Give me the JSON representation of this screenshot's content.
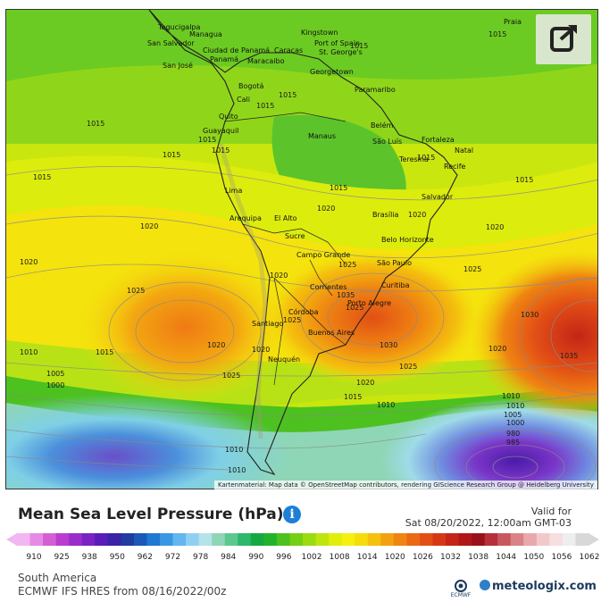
{
  "header": {
    "title": "Mean Sea Level Pressure (hPa)",
    "valid_label": "Valid for",
    "valid_time": "Sat 08/20/2022, 12:00am GMT-03"
  },
  "map": {
    "attribution": "Kartenmaterial: Map data © OpenStreetMap contributors, rendering GIScience Research Group @ Heidelberg University",
    "cities": [
      "Tegucigalpa",
      "San Salvador",
      "Managua",
      "Ciudad de Panamá",
      "San José",
      "Panamá",
      "Maracaibo",
      "Caracas",
      "Port of Spain",
      "St. George's",
      "Kingstown",
      "Georgetown",
      "Paramaribo",
      "Bogotá",
      "Cali",
      "Quito",
      "Guayaquil",
      "Lima",
      "Arequipa",
      "El Alto",
      "Sucre",
      "Belém",
      "Manaus",
      "São Luís",
      "Fortaleza",
      "Teresina",
      "Natal",
      "Recife",
      "Salvador",
      "Brasília",
      "Belo Horizonte",
      "São Paulo",
      "Curitiba",
      "Campo Grande",
      "Porto Alegre",
      "Corrientes",
      "Córdoba",
      "Santiago",
      "Buenos Aires",
      "Neuquén",
      "Praia"
    ],
    "isobars": [
      "1015",
      "1015",
      "1015",
      "1015",
      "1015",
      "1015",
      "1015",
      "1015",
      "1015",
      "1015",
      "1015",
      "1015",
      "1015",
      "1015",
      "1020",
      "1020",
      "1020",
      "1020",
      "1020",
      "1020",
      "1020",
      "1020",
      "1020",
      "1020",
      "1025",
      "1025",
      "1025",
      "1025",
      "1025",
      "1025",
      "1025",
      "1030",
      "1030",
      "1035",
      "1035",
      "1010",
      "1010",
      "1010",
      "1010",
      "1010",
      "1010",
      "1005",
      "1005",
      "1000",
      "1000",
      "990",
      "985",
      "980"
    ],
    "pressure_fields": {
      "south_pacific_high_hpa": 1030,
      "south_atlantic_high_hpa": 1035,
      "south_american_high_hpa": 1033,
      "southern_lows_hpa": 975
    }
  },
  "legend": {
    "ticks": [
      "910",
      "925",
      "938",
      "950",
      "962",
      "972",
      "978",
      "984",
      "990",
      "996",
      "1002",
      "1008",
      "1014",
      "1020",
      "1026",
      "1032",
      "1038",
      "1044",
      "1050",
      "1056",
      "1062"
    ],
    "colors": [
      "#f2b6f2",
      "#e58ae5",
      "#d45fd4",
      "#bb3ccf",
      "#9a2dc9",
      "#7a22c4",
      "#5a1cb8",
      "#3b22a6",
      "#1f3c9e",
      "#1b58b8",
      "#1f78d1",
      "#3a98e3",
      "#63b6ef",
      "#8fd0f2",
      "#b5e3ea",
      "#8fd6b6",
      "#5cc890",
      "#2db86c",
      "#16a843",
      "#24b22a",
      "#4cc11f",
      "#74cf16",
      "#9adb12",
      "#bfe40f",
      "#dfee0d",
      "#f5f00d",
      "#f6dc0d",
      "#f4c10e",
      "#f2a210",
      "#ef8512",
      "#ea6a14",
      "#e24f15",
      "#d63816",
      "#c52516",
      "#b01817",
      "#9a1219",
      "#b5303a",
      "#c8585f",
      "#d98388",
      "#e8a9ad",
      "#f2c9cb",
      "#f5dfe0",
      "#eeeeee",
      "#d8d8d8"
    ]
  },
  "footer": {
    "region": "South America",
    "model": "ECMWF IFS HRES from 08/16/2022/00z",
    "ecmwf_label": "ECMWF",
    "brand": "meteologix.com"
  }
}
